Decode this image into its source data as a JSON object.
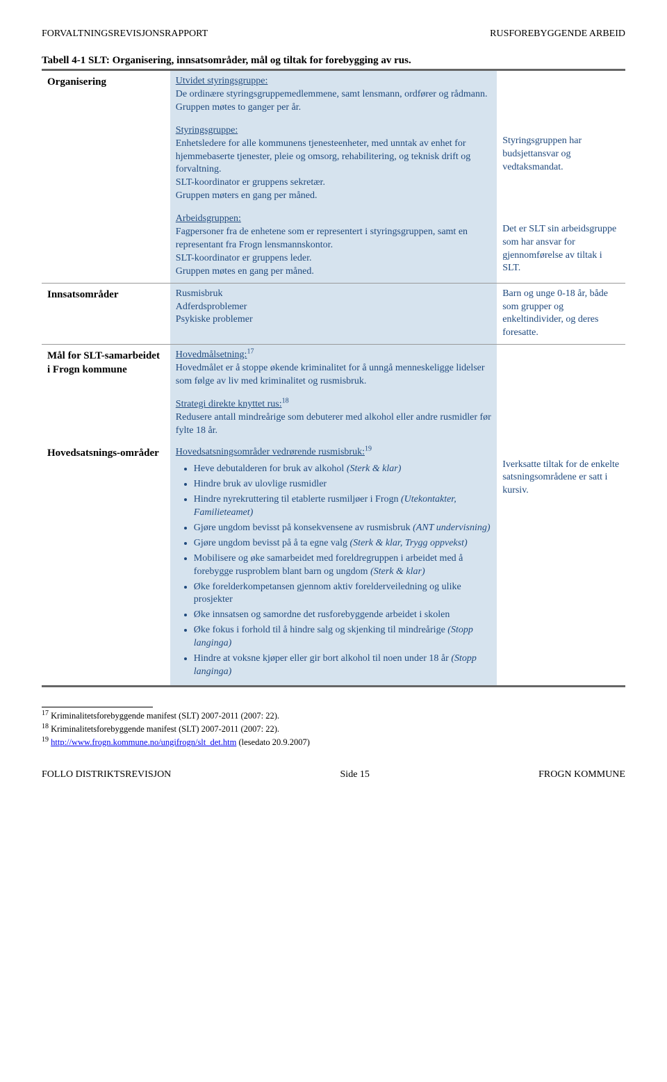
{
  "header": {
    "left": "FORVALTNINGSREVISJONSRAPPORT",
    "right": "RUSFOREBYGGENDE ARBEID"
  },
  "table_title": "Tabell 4-1 SLT: Organisering, innsatsområder, mål og tiltak for forebygging av rus.",
  "rows": {
    "organisering": {
      "label": "Organisering",
      "b1_u": "Utvidet styringsgruppe:",
      "b1_t": "De ordinære styringsgruppemedlemmene, samt lensmann, ordfører og rådmann.\nGruppen møtes to ganger per år.",
      "b2_u": "Styringsgruppe:",
      "b2_t": "Enhetsledere for alle kommunens tjenesteenheter, med unntak av enhet for hjemmebaserte tjenester, pleie og omsorg, rehabilitering, og teknisk drift og forvaltning.\nSLT-koordinator er gruppens sekretær.\nGruppen møters en gang per måned.",
      "b3_u": "Arbeidsgruppen:",
      "b3_t": "Fagpersoner fra de enhetene som er representert i styringsgruppen, samt en representant fra Frogn lensmannskontor.\nSLT-koordinator er gruppens leder.\nGruppen møtes en gang per måned.",
      "r1": "Styringsgruppen har budsjettansvar og vedtaksmandat.",
      "r2": "Det er SLT sin arbeidsgruppe som har ansvar for gjennomførelse av tiltak i SLT."
    },
    "innsats": {
      "label": "Innsatsområder",
      "mid": "Rusmisbruk\nAdferdsproblemer\nPsykiske problemer",
      "right": "Barn og unge 0-18 år, både som grupper og enkeltindivider, og deres foresatte."
    },
    "mal": {
      "label": "Mål for SLT-samarbeidet i Frogn kommune",
      "b1_u": "Hovedmålsetning:",
      "b1_sup": "17",
      "b1_t": "Hovedmålet er å stoppe økende kriminalitet for å unngå menneskeligge lidelser som følge av liv med kriminalitet og rusmisbruk.",
      "b2_u": "Strategi direkte knyttet rus:",
      "b2_sup": "18",
      "b2_t": "Redusere antall mindreårige som debuterer med alkohol eller andre rusmidler før fylte 18 år."
    },
    "hoved": {
      "label": "Hovedsatsnings-områder",
      "intro_u": "Hovedsatsningsområder vedrørende rusmisbruk:",
      "intro_sup": "19",
      "bullets": [
        "Heve debutalderen for bruk av alkohol <i>(Sterk & klar)</i>",
        "Hindre bruk av ulovlige rusmidler",
        "Hindre nyrekruttering til etablerte rusmiljøer i Frogn <i>(Utekontakter, Familieteamet)</i>",
        "Gjøre ungdom bevisst på konsekvensene av rusmisbruk <i>(ANT undervisning)</i>",
        "Gjøre ungdom bevisst på å ta egne valg <i>(Sterk & klar, Trygg oppvekst)</i>",
        "Mobilisere og øke samarbeidet med foreldregruppen i arbeidet med å forebygge rusproblem blant barn og ungdom <i>(Sterk & klar)</i>",
        "Øke forelderkompetansen gjennom aktiv forelderveiledning og ulike prosjekter",
        "Øke innsatsen og samordne det rusforebyggende arbeidet i skolen",
        "Øke fokus i forhold til å hindre salg og skjenking til mindreårige <i>(Stopp langinga)</i>",
        "Hindre at voksne kjøper eller gir bort alkohol til noen under 18 år <i>(Stopp langinga)</i>"
      ],
      "right": "Iverksatte tiltak for de enkelte satsningsområdene er satt i kursiv."
    }
  },
  "footnotes": {
    "f17": "Kriminalitetsforebyggende manifest (SLT) 2007-2011 (2007: 22).",
    "f18": "Kriminalitetsforebyggende manifest (SLT) 2007-2011 (2007: 22).",
    "f19_pre": " ",
    "f19_link": "http://www.frogn.kommune.no/ungifrogn/slt_det.htm",
    "f19_post": " (lesedato 20.9.2007)"
  },
  "footer": {
    "left": "FOLLO DISTRIKTSREVISJON",
    "center": "Side 15",
    "right": "FROGN KOMMUNE"
  }
}
